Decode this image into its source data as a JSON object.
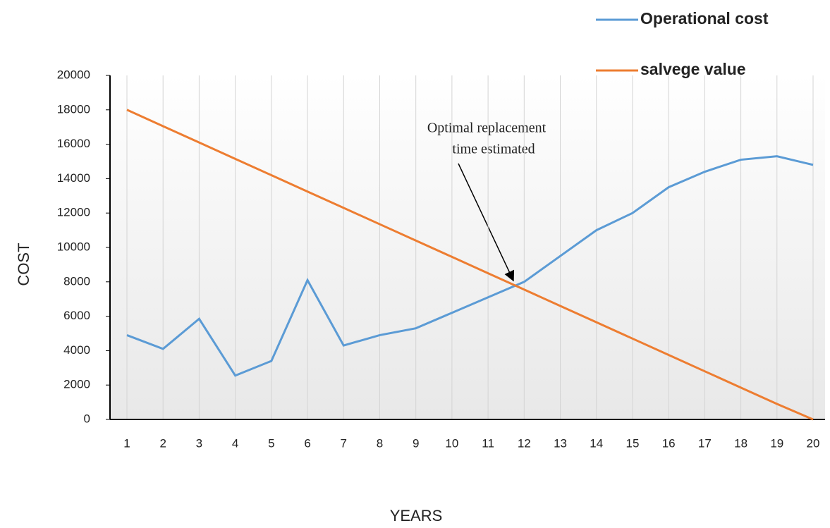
{
  "chart_data": {
    "type": "line",
    "categories": [
      "1",
      "2",
      "3",
      "4",
      "5",
      "6",
      "7",
      "8",
      "9",
      "10",
      "11",
      "12",
      "13",
      "14",
      "15",
      "16",
      "17",
      "18",
      "19",
      "20"
    ],
    "series": [
      {
        "name": "Operational cost",
        "color": "#5b9bd5",
        "values": [
          4900,
          4100,
          5850,
          2550,
          3400,
          8100,
          4300,
          4900,
          5300,
          6200,
          7100,
          8000,
          9500,
          11000,
          12000,
          13500,
          14400,
          15100,
          15300,
          14800
        ]
      },
      {
        "name": "salvege value",
        "color": "#ed7d31",
        "values": [
          18000,
          17050,
          16100,
          15150,
          14200,
          13250,
          12300,
          11350,
          10400,
          9450,
          8500,
          7550,
          6600,
          5650,
          4700,
          3750,
          2800,
          1850,
          900,
          0
        ]
      }
    ],
    "ylim": [
      0,
      20000
    ],
    "yticks": [
      0,
      2000,
      4000,
      6000,
      8000,
      10000,
      12000,
      14000,
      16000,
      18000,
      20000
    ],
    "xlabel": "YEARS",
    "ylabel": "COST",
    "annotation": [
      "Optimal replacement",
      "time estimated"
    ],
    "grid": true
  }
}
